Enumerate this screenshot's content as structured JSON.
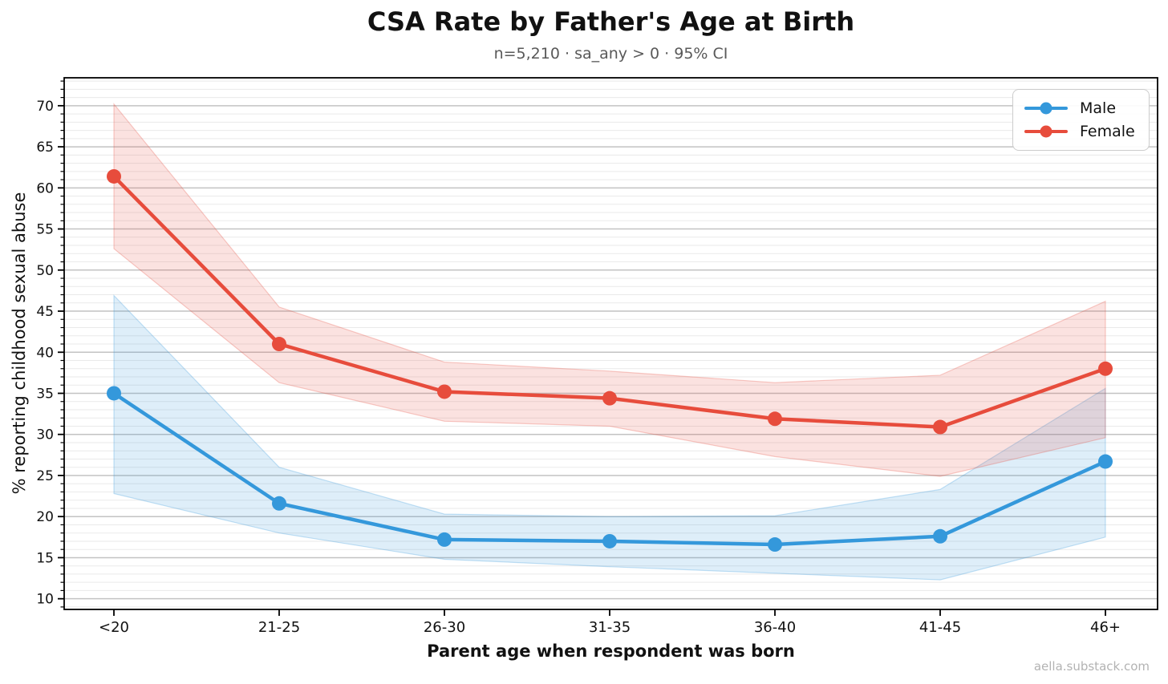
{
  "footer": {
    "watermark": "aella.substack.com"
  },
  "chart_data": {
    "type": "line",
    "title": "CSA Rate by Father's Age at Birth",
    "subtitle": "n=5,210 · sa_any > 0 · 95% CI",
    "xlabel": "Parent age when respondent was born",
    "ylabel": "% reporting childhood sexual abuse",
    "categories": [
      "<20",
      "21-25",
      "26-30",
      "31-35",
      "36-40",
      "41-45",
      "46+"
    ],
    "series": [
      {
        "name": "Male",
        "color": "#3498db",
        "values": [
          35.0,
          21.6,
          17.2,
          17.0,
          16.6,
          17.6,
          26.7
        ],
        "ci_lower": [
          22.8,
          18.0,
          14.8,
          13.9,
          13.1,
          12.3,
          17.5
        ],
        "ci_upper": [
          46.9,
          26.0,
          20.3,
          20.0,
          20.1,
          23.3,
          35.6
        ]
      },
      {
        "name": "Female",
        "color": "#e74c3c",
        "values": [
          61.4,
          41.0,
          35.2,
          34.4,
          31.9,
          30.9,
          38.0
        ],
        "ci_lower": [
          52.6,
          36.3,
          31.6,
          31.0,
          27.3,
          24.9,
          29.6
        ],
        "ci_upper": [
          70.2,
          45.5,
          38.8,
          37.7,
          36.3,
          37.2,
          46.2
        ]
      }
    ],
    "ci_level": "95% CI",
    "ylim": [
      8.7,
      73.4
    ],
    "yticks": {
      "major_min": 10,
      "major_max": 70,
      "major_step": 5,
      "minor_step": 1
    },
    "grid": "horizontal, minor + major",
    "legend_position": "upper-right"
  }
}
